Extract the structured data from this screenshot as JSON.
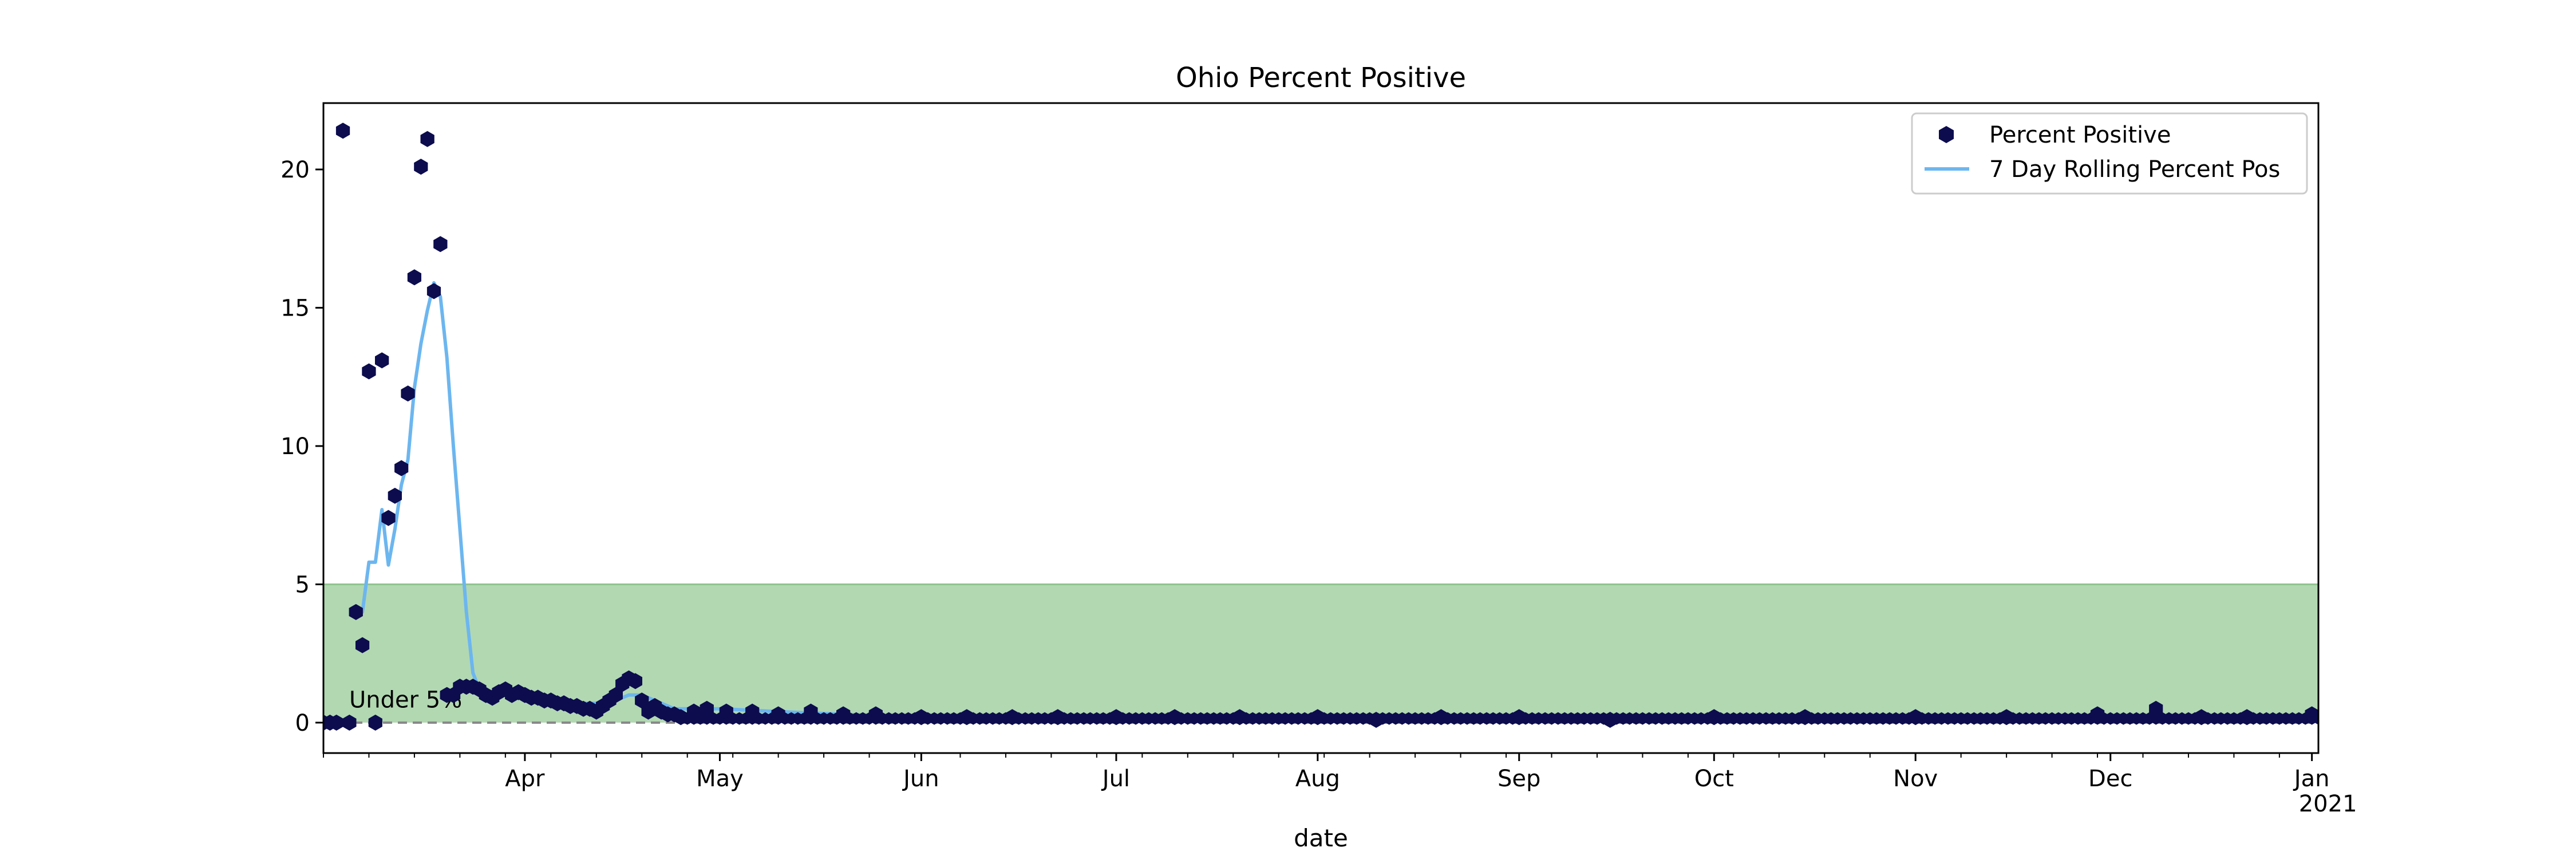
{
  "chart_data": {
    "type": "scatter",
    "title": "Ohio Percent Positive",
    "xlabel": "date",
    "ylabel": "",
    "x_range": [
      "2020-03-01",
      "2021-01-02"
    ],
    "ylim": [
      -1.1,
      22.4
    ],
    "y_ticks": [
      0,
      5,
      10,
      15,
      20
    ],
    "x_ticks": [
      {
        "date": "2020-04-01",
        "label": "Apr"
      },
      {
        "date": "2020-05-01",
        "label": "May"
      },
      {
        "date": "2020-06-01",
        "label": "Jun"
      },
      {
        "date": "2020-07-01",
        "label": "Jul"
      },
      {
        "date": "2020-08-01",
        "label": "Aug"
      },
      {
        "date": "2020-09-01",
        "label": "Sep"
      },
      {
        "date": "2020-10-01",
        "label": "Oct"
      },
      {
        "date": "2020-11-01",
        "label": "Nov"
      },
      {
        "date": "2020-12-01",
        "label": "Dec"
      },
      {
        "date": "2021-01-01",
        "label": "Jan",
        "sublabel": "2021"
      }
    ],
    "grid": false,
    "legend_position": "top-right",
    "threshold_band": {
      "y0": 0,
      "y1": 5,
      "color": "#b2d8b2",
      "edge": "#8ec48e",
      "label": "Under 5%"
    },
    "baseline": {
      "y": 0,
      "style": "dashed",
      "color": "#888888"
    },
    "series": [
      {
        "name": "Percent Positive",
        "kind": "scatter",
        "color": "#0c0c4e",
        "points": [
          [
            "2020-03-01",
            0.0
          ],
          [
            "2020-03-02",
            0.0
          ],
          [
            "2020-03-03",
            0.0
          ],
          [
            "2020-03-04",
            21.4
          ],
          [
            "2020-03-05",
            0.0
          ],
          [
            "2020-03-06",
            4.0
          ],
          [
            "2020-03-07",
            2.8
          ],
          [
            "2020-03-08",
            12.7
          ],
          [
            "2020-03-09",
            0.0
          ],
          [
            "2020-03-10",
            13.1
          ],
          [
            "2020-03-11",
            7.4
          ],
          [
            "2020-03-12",
            8.2
          ],
          [
            "2020-03-13",
            9.2
          ],
          [
            "2020-03-14",
            11.9
          ],
          [
            "2020-03-15",
            16.1
          ],
          [
            "2020-03-16",
            20.1
          ],
          [
            "2020-03-17",
            21.1
          ],
          [
            "2020-03-18",
            15.6
          ],
          [
            "2020-03-19",
            17.3
          ],
          [
            "2020-03-20",
            1.0
          ],
          [
            "2020-03-21",
            1.0
          ],
          [
            "2020-03-22",
            1.3
          ],
          [
            "2020-03-23",
            1.3
          ],
          [
            "2020-03-24",
            1.3
          ],
          [
            "2020-03-25",
            1.2
          ],
          [
            "2020-03-26",
            1.0
          ],
          [
            "2020-03-27",
            0.9
          ],
          [
            "2020-03-28",
            1.1
          ],
          [
            "2020-03-29",
            1.2
          ],
          [
            "2020-03-30",
            1.0
          ],
          [
            "2020-03-31",
            1.1
          ],
          [
            "2020-04-01",
            1.0
          ],
          [
            "2020-04-02",
            0.9
          ],
          [
            "2020-04-03",
            0.9
          ],
          [
            "2020-04-04",
            0.8
          ],
          [
            "2020-04-05",
            0.8
          ],
          [
            "2020-04-06",
            0.7
          ],
          [
            "2020-04-07",
            0.7
          ],
          [
            "2020-04-08",
            0.6
          ],
          [
            "2020-04-09",
            0.6
          ],
          [
            "2020-04-10",
            0.5
          ],
          [
            "2020-04-11",
            0.5
          ],
          [
            "2020-04-12",
            0.4
          ],
          [
            "2020-04-13",
            0.6
          ],
          [
            "2020-04-14",
            0.8
          ],
          [
            "2020-04-15",
            1.0
          ],
          [
            "2020-04-16",
            1.4
          ],
          [
            "2020-04-17",
            1.6
          ],
          [
            "2020-04-18",
            1.5
          ],
          [
            "2020-04-19",
            0.8
          ],
          [
            "2020-04-20",
            0.4
          ],
          [
            "2020-04-21",
            0.6
          ],
          [
            "2020-04-22",
            0.4
          ],
          [
            "2020-04-23",
            0.3
          ],
          [
            "2020-04-24",
            0.3
          ],
          [
            "2020-04-25",
            0.2
          ],
          [
            "2020-04-27",
            0.4
          ],
          [
            "2020-04-29",
            0.5
          ],
          [
            "2020-05-02",
            0.4
          ],
          [
            "2020-05-06",
            0.4
          ],
          [
            "2020-05-10",
            0.3
          ],
          [
            "2020-05-15",
            0.4
          ],
          [
            "2020-05-20",
            0.3
          ],
          [
            "2020-05-25",
            0.3
          ],
          [
            "2020-06-01",
            0.2
          ],
          [
            "2020-06-08",
            0.2
          ],
          [
            "2020-06-15",
            0.2
          ],
          [
            "2020-06-22",
            0.2
          ],
          [
            "2020-07-01",
            0.2
          ],
          [
            "2020-07-10",
            0.2
          ],
          [
            "2020-07-20",
            0.2
          ],
          [
            "2020-08-01",
            0.2
          ],
          [
            "2020-08-10",
            0.1
          ],
          [
            "2020-08-20",
            0.2
          ],
          [
            "2020-09-01",
            0.2
          ],
          [
            "2020-09-15",
            0.1
          ],
          [
            "2020-10-01",
            0.2
          ],
          [
            "2020-10-15",
            0.2
          ],
          [
            "2020-11-01",
            0.2
          ],
          [
            "2020-11-15",
            0.2
          ],
          [
            "2020-11-29",
            0.3
          ],
          [
            "2020-12-08",
            0.5
          ],
          [
            "2020-12-15",
            0.2
          ],
          [
            "2020-12-22",
            0.2
          ],
          [
            "2021-01-01",
            0.3
          ]
        ]
      },
      {
        "name": "7 Day Rolling Percent Pos",
        "kind": "line",
        "color": "#6cb6ef",
        "points": [
          [
            "2020-03-06",
            4.0
          ],
          [
            "2020-03-07",
            4.0
          ],
          [
            "2020-03-08",
            5.8
          ],
          [
            "2020-03-09",
            5.8
          ],
          [
            "2020-03-10",
            7.7
          ],
          [
            "2020-03-11",
            5.7
          ],
          [
            "2020-03-12",
            7.0
          ],
          [
            "2020-03-13",
            8.6
          ],
          [
            "2020-03-14",
            9.5
          ],
          [
            "2020-03-15",
            12.1
          ],
          [
            "2020-03-16",
            13.7
          ],
          [
            "2020-03-17",
            14.9
          ],
          [
            "2020-03-18",
            15.9
          ],
          [
            "2020-03-19",
            15.4
          ],
          [
            "2020-03-20",
            13.2
          ],
          [
            "2020-03-21",
            10.0
          ],
          [
            "2020-03-22",
            7.0
          ],
          [
            "2020-03-23",
            4.0
          ],
          [
            "2020-03-24",
            1.8
          ],
          [
            "2020-03-25",
            1.2
          ],
          [
            "2020-03-26",
            1.15
          ],
          [
            "2020-03-27",
            1.1
          ],
          [
            "2020-03-29",
            1.05
          ],
          [
            "2020-04-01",
            1.0
          ],
          [
            "2020-04-04",
            0.9
          ],
          [
            "2020-04-07",
            0.8
          ],
          [
            "2020-04-10",
            0.7
          ],
          [
            "2020-04-13",
            0.7
          ],
          [
            "2020-04-15",
            0.8
          ],
          [
            "2020-04-17",
            1.0
          ],
          [
            "2020-04-19",
            1.0
          ],
          [
            "2020-04-21",
            0.8
          ],
          [
            "2020-04-24",
            0.5
          ],
          [
            "2020-05-01",
            0.5
          ],
          [
            "2020-05-10",
            0.4
          ],
          [
            "2020-05-20",
            0.3
          ],
          [
            "2020-06-01",
            0.2
          ],
          [
            "2020-07-01",
            0.1
          ],
          [
            "2020-08-01",
            0.05
          ],
          [
            "2020-09-01",
            0.05
          ],
          [
            "2020-10-01",
            0.05
          ],
          [
            "2020-11-01",
            0.1
          ],
          [
            "2020-12-01",
            0.15
          ],
          [
            "2020-12-15",
            0.1
          ],
          [
            "2021-01-01",
            0.05
          ]
        ]
      }
    ]
  }
}
